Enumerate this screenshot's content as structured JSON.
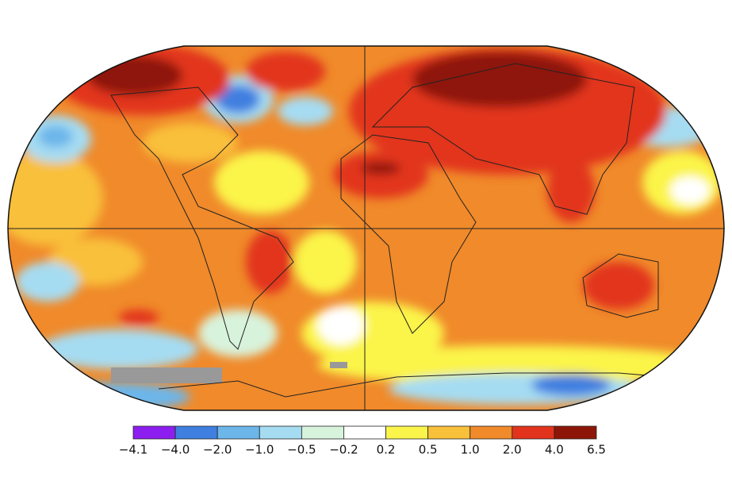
{
  "colorbar": {
    "labels": [
      "−4.1",
      "−4.0",
      "−2.0",
      "−1.0",
      "−0.5",
      "−0.2",
      "0.2",
      "0.5",
      "1.0",
      "2.0",
      "4.0",
      "6.5"
    ],
    "colors": [
      "#8d1ef0",
      "#3f7fe0",
      "#6cb6ea",
      "#a6dcf2",
      "#d8f3dc",
      "#ffffff",
      "#fbf44a",
      "#f9c03a",
      "#f08a2a",
      "#e2341c",
      "#8e1608"
    ]
  }
}
